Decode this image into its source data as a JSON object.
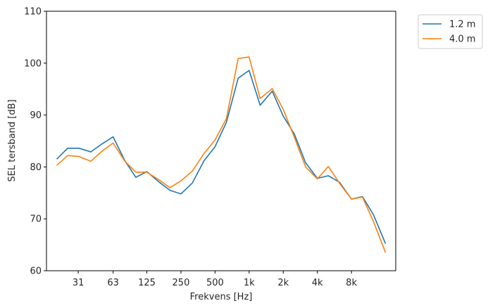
{
  "chart_data": {
    "type": "line",
    "xlabel": "Frekvens [Hz]",
    "ylabel": "SEL tersband [dB]",
    "x_scale": "log",
    "x_tick_values": [
      31,
      63,
      125,
      250,
      500,
      1000,
      2000,
      4000,
      8000
    ],
    "x_tick_labels": [
      "31",
      "63",
      "125",
      "250",
      "500",
      "1k",
      "2k",
      "4k",
      "8k"
    ],
    "ylim": [
      60,
      110
    ],
    "y_ticks": [
      60,
      70,
      80,
      90,
      100,
      110
    ],
    "y_tick_labels": [
      "60",
      "70",
      "80",
      "90",
      "100",
      "110"
    ],
    "grid": false,
    "legend_position": "outside-top-right",
    "x": [
      20,
      25,
      31.5,
      40,
      50,
      63,
      80,
      100,
      125,
      160,
      200,
      250,
      315,
      400,
      500,
      630,
      800,
      1000,
      1250,
      1600,
      2000,
      2500,
      3150,
      4000,
      5000,
      6300,
      8000,
      10000,
      12500,
      16000
    ],
    "series": [
      {
        "name": "1.2 m",
        "color": "#1f77b4",
        "values": [
          81.5,
          83.6,
          83.6,
          82.9,
          84.4,
          85.8,
          81.2,
          78.0,
          79.1,
          77.1,
          75.5,
          74.8,
          76.9,
          81.2,
          83.9,
          88.6,
          97.1,
          98.6,
          91.9,
          94.6,
          89.8,
          86.4,
          80.8,
          77.8,
          78.3,
          77.0,
          73.8,
          74.3,
          70.8,
          65.2
        ]
      },
      {
        "name": "4.0 m",
        "color": "#ff7f0e",
        "values": [
          80.3,
          82.2,
          82.0,
          81.1,
          83.0,
          84.6,
          81.1,
          79.0,
          79.0,
          77.5,
          76.0,
          77.3,
          79.2,
          82.6,
          85.2,
          89.3,
          100.9,
          101.2,
          93.2,
          95.1,
          91.1,
          85.8,
          80.0,
          77.7,
          80.1,
          76.8,
          73.8,
          74.2,
          69.5,
          63.5
        ]
      }
    ]
  }
}
